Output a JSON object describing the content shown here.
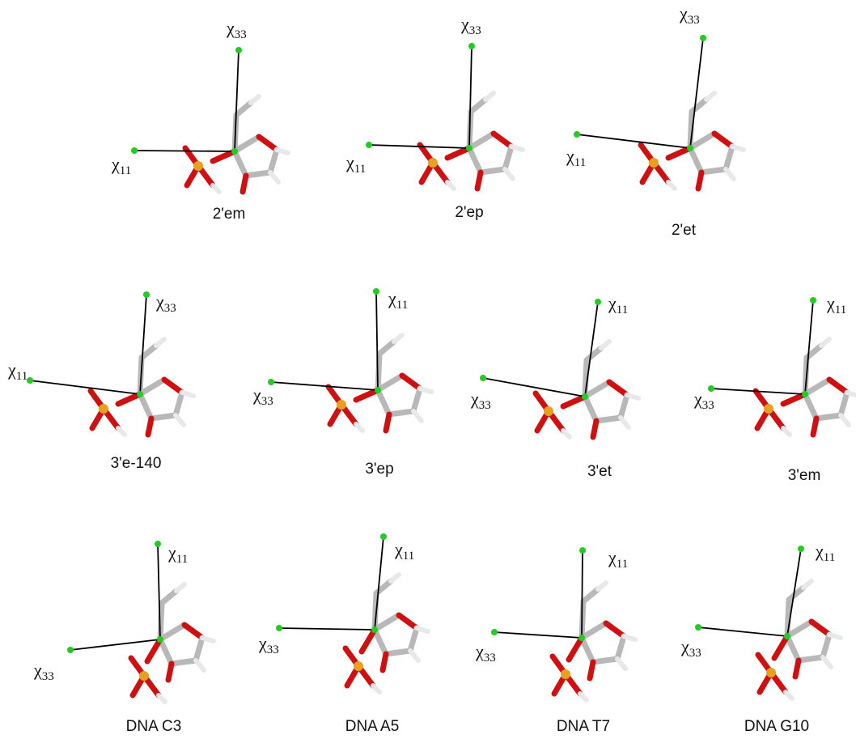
{
  "panels": [
    {
      "caption": "2'em",
      "labels": [
        {
          "symbol": "χ",
          "subscript": "33"
        },
        {
          "symbol": "χ",
          "subscript": "11"
        }
      ]
    },
    {
      "caption": "2'ep",
      "labels": [
        {
          "symbol": "χ",
          "subscript": "33"
        },
        {
          "symbol": "χ",
          "subscript": "11"
        }
      ]
    },
    {
      "caption": "2'et",
      "labels": [
        {
          "symbol": "χ",
          "subscript": "33"
        },
        {
          "symbol": "χ",
          "subscript": "11"
        }
      ]
    },
    {
      "caption": "3'e-140",
      "labels": [
        {
          "symbol": "χ",
          "subscript": "33"
        },
        {
          "symbol": "χ",
          "subscript": "11"
        }
      ]
    },
    {
      "caption": "3'ep",
      "labels": [
        {
          "symbol": "χ",
          "subscript": "11"
        },
        {
          "symbol": "χ",
          "subscript": "33"
        }
      ]
    },
    {
      "caption": "3'et",
      "labels": [
        {
          "symbol": "χ",
          "subscript": "11"
        },
        {
          "symbol": "χ",
          "subscript": "33"
        }
      ]
    },
    {
      "caption": "3'em",
      "labels": [
        {
          "symbol": "χ",
          "subscript": "11"
        },
        {
          "symbol": "χ",
          "subscript": "33"
        }
      ]
    },
    {
      "caption": "DNA C3",
      "labels": [
        {
          "symbol": "χ",
          "subscript": "11"
        },
        {
          "symbol": "χ",
          "subscript": "33"
        }
      ]
    },
    {
      "caption": "DNA A5",
      "labels": [
        {
          "symbol": "χ",
          "subscript": "11"
        },
        {
          "symbol": "χ",
          "subscript": "33"
        }
      ]
    },
    {
      "caption": "DNA T7",
      "labels": [
        {
          "symbol": "χ",
          "subscript": "11"
        },
        {
          "symbol": "χ",
          "subscript": "33"
        }
      ]
    },
    {
      "caption": "DNA G10",
      "labels": [
        {
          "symbol": "χ",
          "subscript": "11"
        },
        {
          "symbol": "χ",
          "subscript": "33"
        }
      ]
    }
  ]
}
